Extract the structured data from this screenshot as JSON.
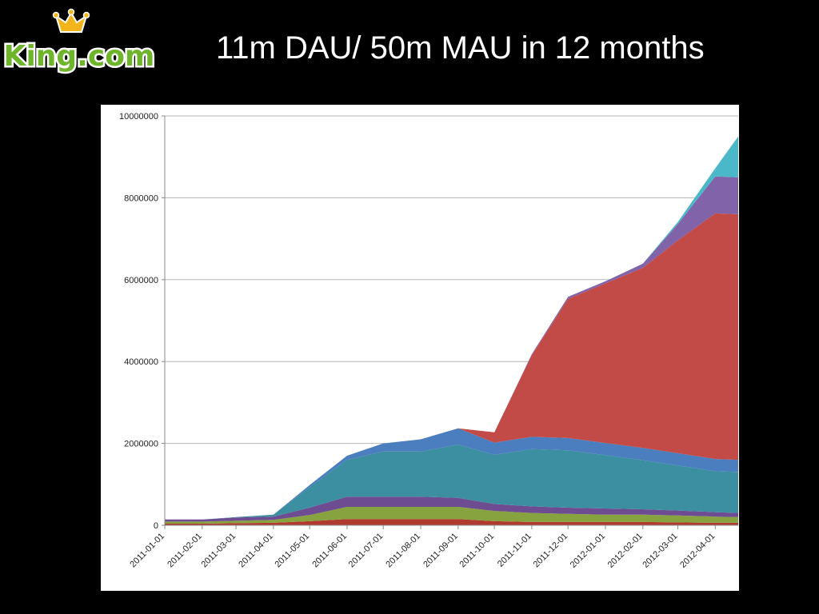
{
  "slide": {
    "title": "11m DAU/ 50m MAU in 12 months",
    "logo_text": "King.com",
    "logo_colors": {
      "text": "#6fb52c",
      "outline": "#ffffff",
      "crown": "#f2b51c"
    }
  },
  "chart_data": {
    "type": "area",
    "stacked": true,
    "grid": "horizontal",
    "legend": "none",
    "ylim": [
      0,
      10000000
    ],
    "yticks": [
      "0",
      "2000000",
      "4000000",
      "6000000",
      "8000000",
      "10000000"
    ],
    "xticks": [
      "2011-01-01",
      "2011-02-01",
      "2011-03-01",
      "2011-04-01",
      "2011-05-01",
      "2011-06-01",
      "2011-07-01",
      "2011-08-01",
      "2011-09-01",
      "2011-10-01",
      "2011-11-01",
      "2011-12-01",
      "2012-01-01",
      "2012-02-01",
      "2012-03-01",
      "2012-04-01"
    ],
    "x": [
      "2011-01-01",
      "2011-02-01",
      "2011-03-01",
      "2011-04-01",
      "2011-05-01",
      "2011-06-01",
      "2011-07-01",
      "2011-08-01",
      "2011-09-01",
      "2011-10-01",
      "2011-11-01",
      "2011-12-01",
      "2012-01-01",
      "2012-02-01",
      "2012-03-01",
      "2012-04-01",
      "2012-04-20"
    ],
    "series": [
      {
        "color": "#b03a2e",
        "values": [
          40000,
          40000,
          50000,
          60000,
          100000,
          150000,
          150000,
          150000,
          150000,
          100000,
          80000,
          80000,
          80000,
          80000,
          70000,
          60000,
          60000
        ]
      },
      {
        "color": "#86a33f",
        "values": [
          50000,
          50000,
          60000,
          70000,
          150000,
          300000,
          300000,
          300000,
          300000,
          250000,
          220000,
          200000,
          180000,
          180000,
          170000,
          150000,
          140000
        ]
      },
      {
        "color": "#6d4c91",
        "values": [
          50000,
          50000,
          80000,
          80000,
          180000,
          250000,
          250000,
          250000,
          220000,
          170000,
          160000,
          150000,
          150000,
          130000,
          120000,
          110000,
          100000
        ]
      },
      {
        "color": "#3c8fa1",
        "values": [
          0,
          0,
          10000,
          50000,
          500000,
          900000,
          1100000,
          1100000,
          1300000,
          1200000,
          1400000,
          1400000,
          1300000,
          1200000,
          1100000,
          1000000,
          1000000
        ]
      },
      {
        "color": "#4a7ebf",
        "values": [
          0,
          0,
          0,
          0,
          50000,
          100000,
          200000,
          300000,
          400000,
          300000,
          300000,
          300000,
          300000,
          300000,
          300000,
          300000,
          300000
        ]
      },
      {
        "color": "#c24b47",
        "values": [
          0,
          0,
          0,
          0,
          0,
          0,
          0,
          0,
          0,
          250000,
          2000000,
          3400000,
          3900000,
          4400000,
          5200000,
          6000000,
          6000000
        ]
      },
      {
        "color": "#8063a8",
        "values": [
          0,
          0,
          0,
          0,
          0,
          0,
          0,
          0,
          0,
          0,
          20000,
          50000,
          50000,
          100000,
          400000,
          900000,
          900000
        ]
      },
      {
        "color": "#4bb8c9",
        "values": [
          0,
          0,
          0,
          0,
          0,
          0,
          0,
          0,
          0,
          0,
          0,
          0,
          0,
          0,
          50000,
          200000,
          1000000
        ]
      }
    ]
  }
}
